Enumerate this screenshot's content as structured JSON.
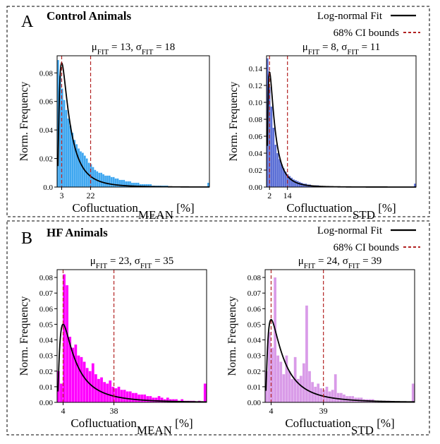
{
  "legend": {
    "fit_label": "Log-normal Fit",
    "ci_label": "68% CI bounds",
    "fit_color": "#000000",
    "ci_color": "#b22222"
  },
  "panels": [
    {
      "letter": "A",
      "group_title": "Control Animals"
    },
    {
      "letter": "B",
      "group_title": "HF Animals"
    }
  ],
  "axis": {
    "ylabel": "Norm. Frequency",
    "xlabel_prefix": "Cofluctuation",
    "xlabel_suffix": " [%]",
    "sub_mean": "MEAN",
    "sub_std": "STD",
    "mu_text": "μ",
    "sigma_text": "σ",
    "fit_sub": "FIT",
    "eq": " = ",
    "sep": ", "
  },
  "chart_data": [
    {
      "id": "control-mean",
      "type": "bar",
      "color": "#3fa7f0",
      "mu": "13",
      "sigma": "18",
      "sub": "MEAN",
      "ylim": [
        0,
        0.092
      ],
      "yticks": [
        "0.0",
        "0.02",
        "0.04",
        "0.06",
        "0.08"
      ],
      "ytick_values": [
        0,
        0.02,
        0.04,
        0.06,
        0.08
      ],
      "ci_lower": 3,
      "ci_upper": 22,
      "xmax": 100,
      "fit_mode": 3,
      "fit_peak": 0.087,
      "fit_sigma": 0.9,
      "values": [
        0.089,
        0.078,
        0.069,
        0.061,
        0.054,
        0.048,
        0.043,
        0.038,
        0.033,
        0.03,
        0.027,
        0.025,
        0.024,
        0.022,
        0.02,
        0.017,
        0.016,
        0.014,
        0.012,
        0.011,
        0.01,
        0.01,
        0.009,
        0.008,
        0.008,
        0.008,
        0.007,
        0.007,
        0.006,
        0.006,
        0.005,
        0.005,
        0.005,
        0.004,
        0.004,
        0.004,
        0.003,
        0.003,
        0.003,
        0.003,
        0.002,
        0.002,
        0.002,
        0.002,
        0.002,
        0.002,
        0.001,
        0.001,
        0.001,
        0.001,
        0.001,
        0.001,
        0.001,
        0.001,
        0.0,
        0.0,
        0.0,
        0.0,
        0.0,
        0.0,
        0.0,
        0.0,
        0.0,
        0.0,
        0.0,
        0.0,
        0.0,
        0.0,
        0.0,
        0.0,
        0.0,
        0.0,
        0.0,
        0.003
      ]
    },
    {
      "id": "control-std",
      "type": "bar",
      "color": "#5b6fd6",
      "mu": "8",
      "sigma": "11",
      "sub": "STD",
      "ylim": [
        0,
        0.155
      ],
      "yticks": [
        "0.00",
        "0.02",
        "0.04",
        "0.06",
        "0.08",
        "0.10",
        "0.12",
        "0.14"
      ],
      "ytick_values": [
        0,
        0.02,
        0.04,
        0.06,
        0.08,
        0.1,
        0.12,
        0.14
      ],
      "ci_lower": 2,
      "ci_upper": 14,
      "xmax": 100,
      "fit_mode": 2,
      "fit_peak": 0.136,
      "fit_sigma": 0.9,
      "values": [
        0.152,
        0.118,
        0.095,
        0.07,
        0.05,
        0.04,
        0.033,
        0.027,
        0.022,
        0.018,
        0.015,
        0.013,
        0.011,
        0.009,
        0.008,
        0.007,
        0.006,
        0.005,
        0.004,
        0.004,
        0.003,
        0.003,
        0.002,
        0.002,
        0.002,
        0.002,
        0.001,
        0.001,
        0.001,
        0.001,
        0.001,
        0.001,
        0.0,
        0.0,
        0.0,
        0.0,
        0.0,
        0.0,
        0.0,
        0.0,
        0.0,
        0.0,
        0.0,
        0.0,
        0.0,
        0.0,
        0.0,
        0.0,
        0.0,
        0.0,
        0.0,
        0.0,
        0.0,
        0.0,
        0.0,
        0.0,
        0.0,
        0.0,
        0.0,
        0.0,
        0.0,
        0.0,
        0.0,
        0.0,
        0.0,
        0.0,
        0.0,
        0.0,
        0.0,
        0.0,
        0.0,
        0.0,
        0.0,
        0.004
      ]
    },
    {
      "id": "hf-mean",
      "type": "bar",
      "color": "#ff00ff",
      "mu": "23",
      "sigma": "35",
      "sub": "MEAN",
      "ylim": [
        0,
        0.085
      ],
      "yticks": [
        "0.00",
        "0.01",
        "0.02",
        "0.03",
        "0.04",
        "0.05",
        "0.06",
        "0.07",
        "0.08"
      ],
      "ytick_values": [
        0,
        0.01,
        0.02,
        0.03,
        0.04,
        0.05,
        0.06,
        0.07,
        0.08
      ],
      "ci_lower": 4,
      "ci_upper": 38,
      "xmax": 100,
      "fit_mode": 4,
      "fit_peak": 0.05,
      "fit_sigma": 1.0,
      "values": [
        0.02,
        0.012,
        0.082,
        0.075,
        0.042,
        0.035,
        0.037,
        0.03,
        0.029,
        0.026,
        0.022,
        0.02,
        0.025,
        0.018,
        0.015,
        0.016,
        0.013,
        0.012,
        0.014,
        0.01,
        0.009,
        0.01,
        0.008,
        0.008,
        0.007,
        0.007,
        0.006,
        0.006,
        0.005,
        0.005,
        0.005,
        0.004,
        0.004,
        0.003,
        0.003,
        0.004,
        0.003,
        0.002,
        0.003,
        0.002,
        0.002,
        0.002,
        0.001,
        0.002,
        0.001,
        0.001,
        0.001,
        0.001,
        0.0,
        0.001,
        0.0,
        0.012
      ]
    },
    {
      "id": "hf-std",
      "type": "bar",
      "color": "#d99be8",
      "mu": "24",
      "sigma": "39",
      "sub": "STD",
      "ylim": [
        0,
        0.085
      ],
      "yticks": [
        "0.00",
        "0.01",
        "0.02",
        "0.03",
        "0.04",
        "0.05",
        "0.06",
        "0.07",
        "0.08"
      ],
      "ytick_values": [
        0,
        0.01,
        0.02,
        0.03,
        0.04,
        0.05,
        0.06,
        0.07,
        0.08
      ],
      "ci_lower": 4,
      "ci_upper": 39,
      "xmax": 100,
      "fit_mode": 4,
      "fit_peak": 0.053,
      "fit_sigma": 1.0,
      "values": [
        0.02,
        0.045,
        0.035,
        0.08,
        0.03,
        0.026,
        0.018,
        0.03,
        0.02,
        0.015,
        0.029,
        0.015,
        0.017,
        0.025,
        0.062,
        0.02,
        0.013,
        0.01,
        0.012,
        0.009,
        0.008,
        0.01,
        0.007,
        0.008,
        0.018,
        0.006,
        0.006,
        0.005,
        0.004,
        0.004,
        0.004,
        0.003,
        0.003,
        0.003,
        0.002,
        0.002,
        0.002,
        0.002,
        0.001,
        0.001,
        0.001,
        0.001,
        0.001,
        0.001,
        0.0,
        0.0,
        0.0,
        0.0,
        0.0,
        0.0,
        0.0,
        0.012
      ]
    }
  ]
}
